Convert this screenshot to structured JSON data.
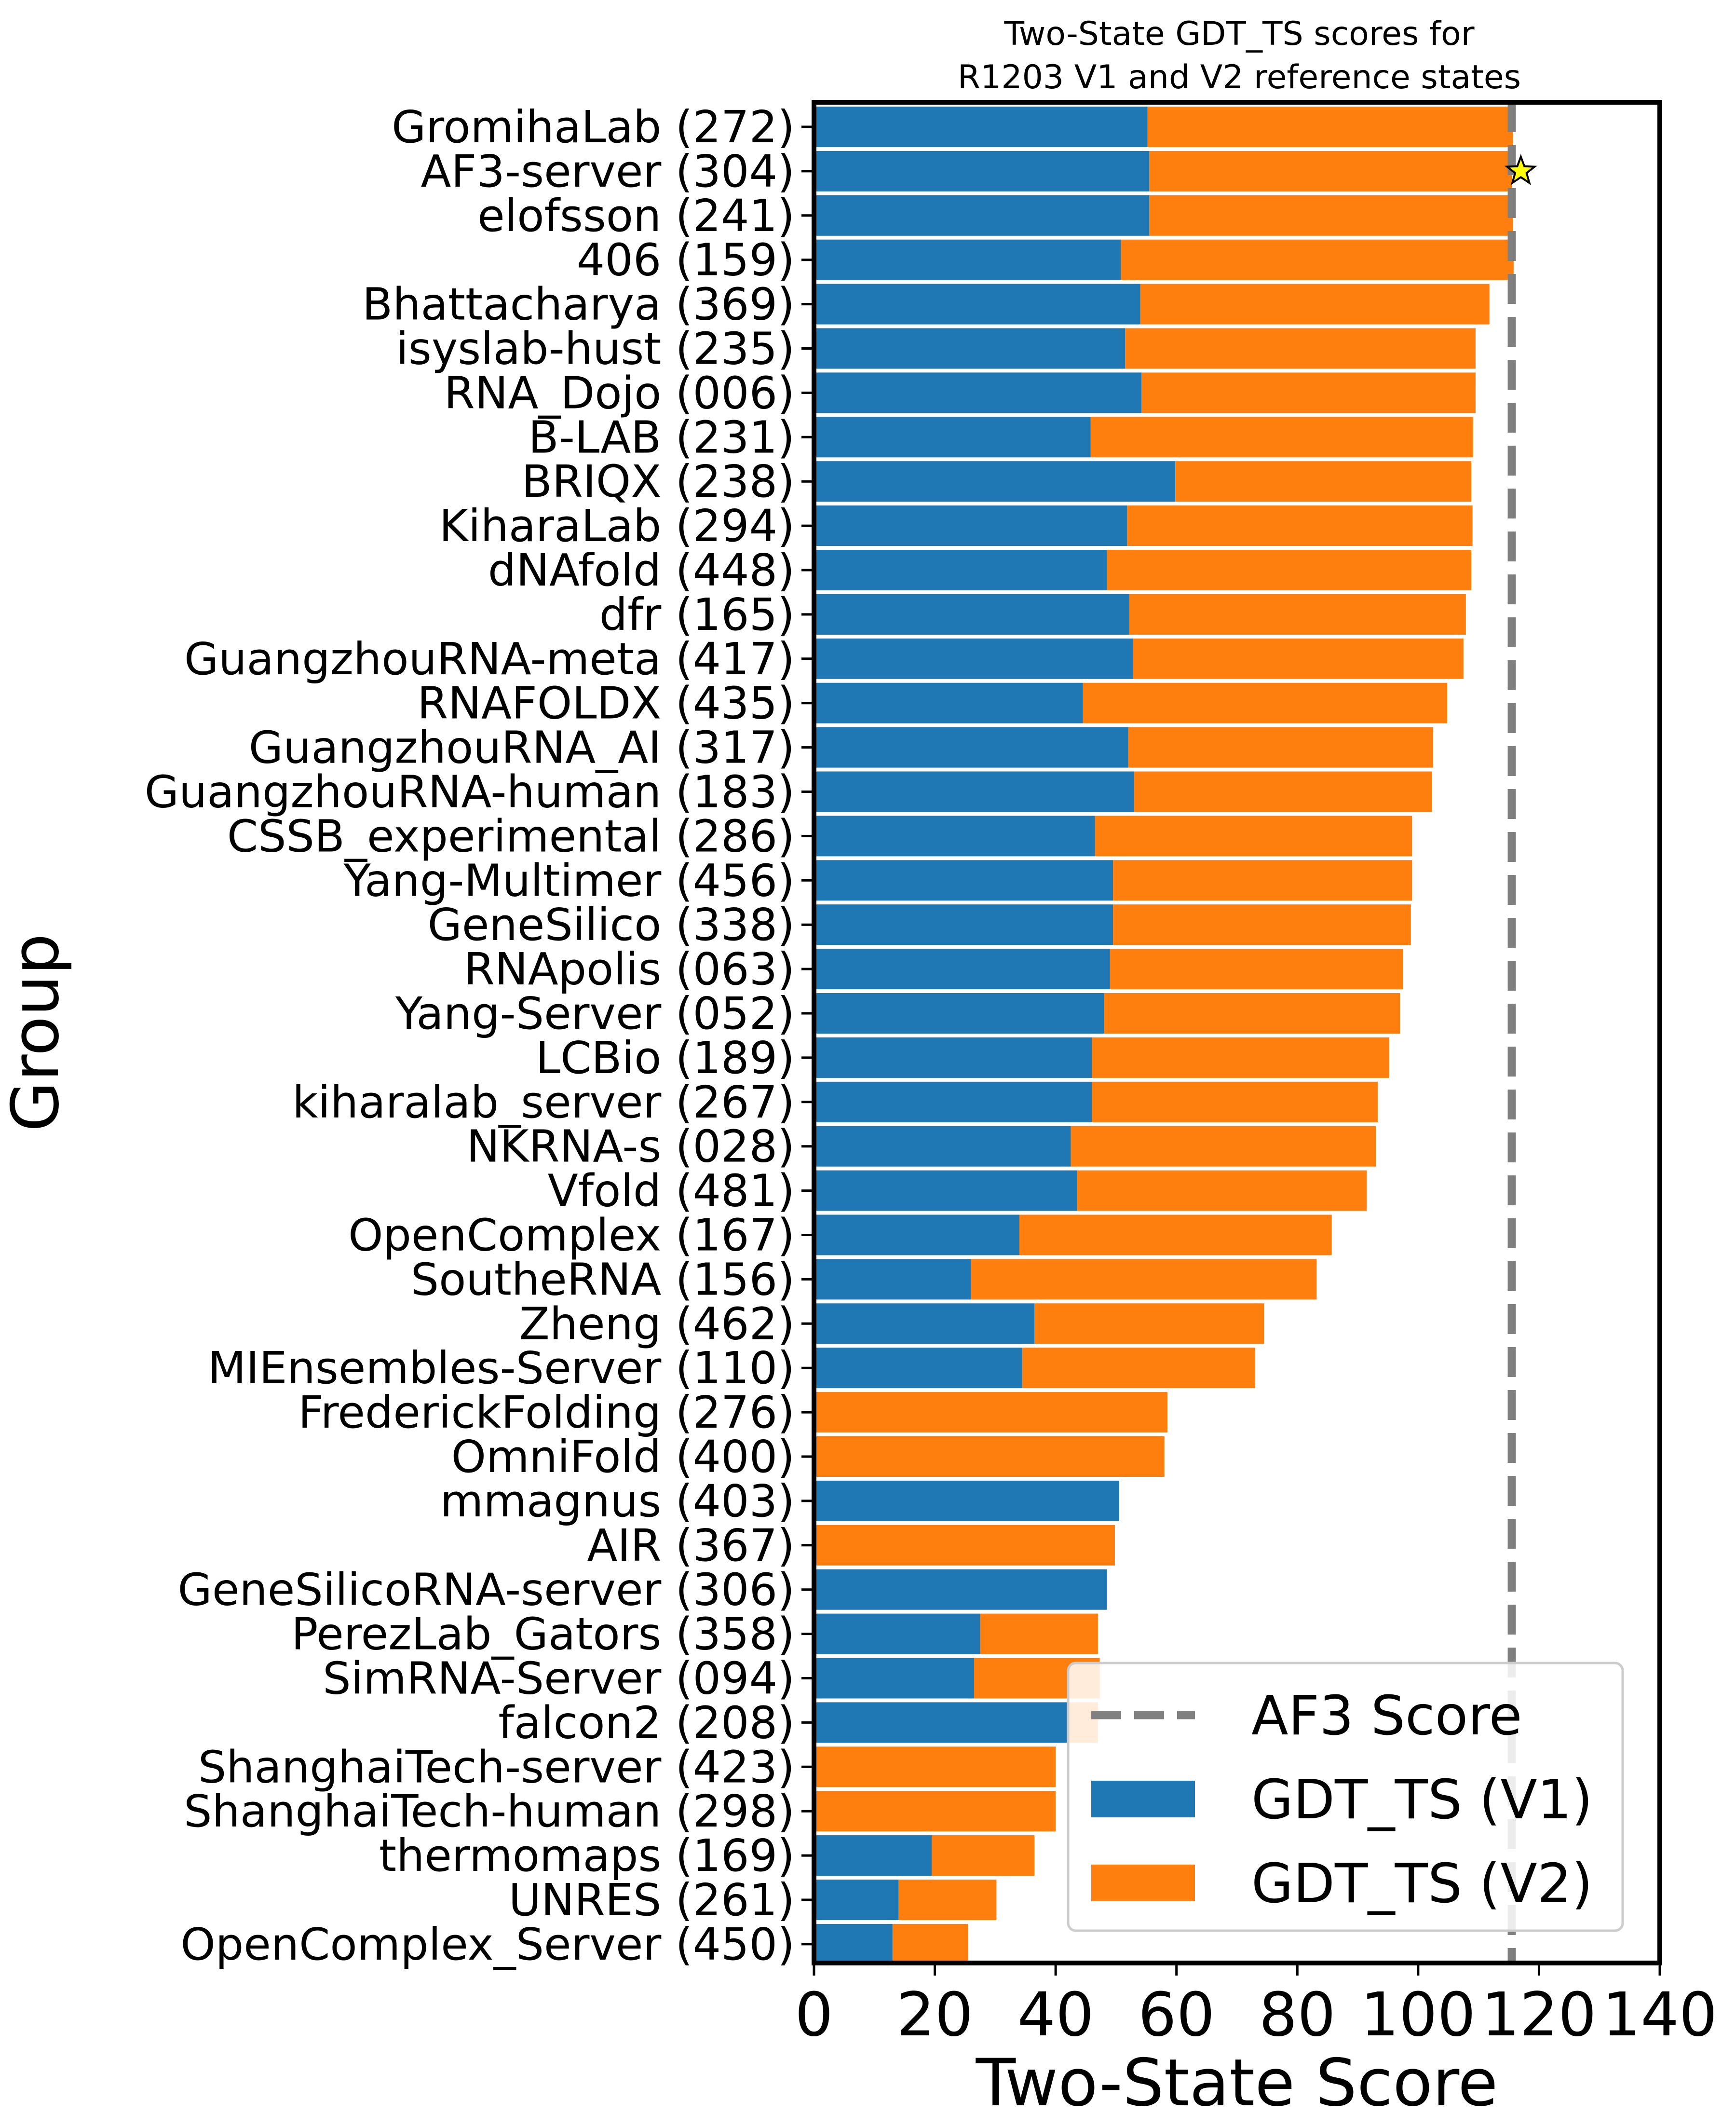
{
  "chart_data": {
    "type": "bar",
    "orientation": "horizontal",
    "stacked": true,
    "title": "Two-State GDT_TS scores for\nR1203 V1 and V2 reference states",
    "xlabel": "Two-State Score",
    "ylabel": "Group",
    "xlim": [
      0,
      140
    ],
    "xticks": [
      0,
      20,
      40,
      60,
      80,
      100,
      120,
      140
    ],
    "grid": false,
    "legend_position": "lower-right",
    "colors": {
      "v1": "#1f77b4",
      "v2": "#ff7f0e",
      "af3": "#808080",
      "star": "#ffff00"
    },
    "categories": [
      "GromihaLab (272)",
      "AF3-server (304)",
      "elofsson (241)",
      "406 (159)",
      "Bhattacharya (369)",
      "isyslab-hust (235)",
      "RNA_Dojo (006)",
      "B-LAB (231)",
      "BRIQX (238)",
      "KiharaLab (294)",
      "dNAfold (448)",
      "dfr (165)",
      "GuangzhouRNA-meta (417)",
      "RNAFOLDX (435)",
      "GuangzhouRNA_AI (317)",
      "GuangzhouRNA-human (183)",
      "CSSB_experimental (286)",
      "Yang-Multimer (456)",
      "GeneSilico (338)",
      "RNApolis (063)",
      "Yang-Server (052)",
      "LCBio (189)",
      "kiharalab_server (267)",
      "NKRNA-s (028)",
      "Vfold (481)",
      "OpenComplex (167)",
      "SoutheRNA (156)",
      "Zheng (462)",
      "MIEnsembles-Server (110)",
      "FrederickFolding (276)",
      "OmniFold (400)",
      "mmagnus (403)",
      "AIR (367)",
      "GeneSilicoRNA-server (306)",
      "PerezLab_Gators (358)",
      "SimRNA-Server (094)",
      "falcon2 (208)",
      "ShanghaiTech-server (423)",
      "ShanghaiTech-human (298)",
      "thermomaps (169)",
      "UNRES (261)",
      "OpenComplex_Server (450)"
    ],
    "series": [
      {
        "name": "GDT_TS (V1)",
        "values": [
          55.2,
          55.5,
          55.5,
          50.8,
          54.0,
          51.5,
          54.2,
          45.8,
          59.8,
          51.8,
          48.5,
          52.2,
          52.8,
          44.5,
          52.0,
          53.0,
          46.5,
          49.5,
          49.5,
          49.0,
          48.0,
          46.0,
          46.0,
          42.5,
          43.5,
          34.0,
          26.0,
          36.5,
          34.5,
          0,
          0,
          50.5,
          0,
          48.5,
          27.5,
          26.5,
          42.0,
          0,
          0,
          19.5,
          14.0,
          13.0
        ]
      },
      {
        "name": "GDT_TS (V2)",
        "values": [
          60.5,
          60.0,
          60.2,
          65.0,
          57.8,
          58.0,
          55.3,
          63.3,
          49.0,
          57.2,
          60.3,
          55.7,
          54.7,
          60.3,
          50.5,
          49.3,
          52.5,
          49.5,
          49.3,
          48.5,
          49.0,
          49.2,
          47.3,
          50.5,
          48.0,
          51.7,
          57.2,
          38.0,
          38.5,
          58.5,
          58.0,
          0,
          49.8,
          0,
          19.5,
          20.8,
          5.0,
          40.0,
          40.0,
          17.0,
          16.2,
          12.5
        ]
      }
    ],
    "reference": {
      "name": "AF3 Score",
      "value": 115.5
    },
    "marker": {
      "category": "AF3-server (304)",
      "value": 117.0,
      "shape": "star"
    }
  }
}
